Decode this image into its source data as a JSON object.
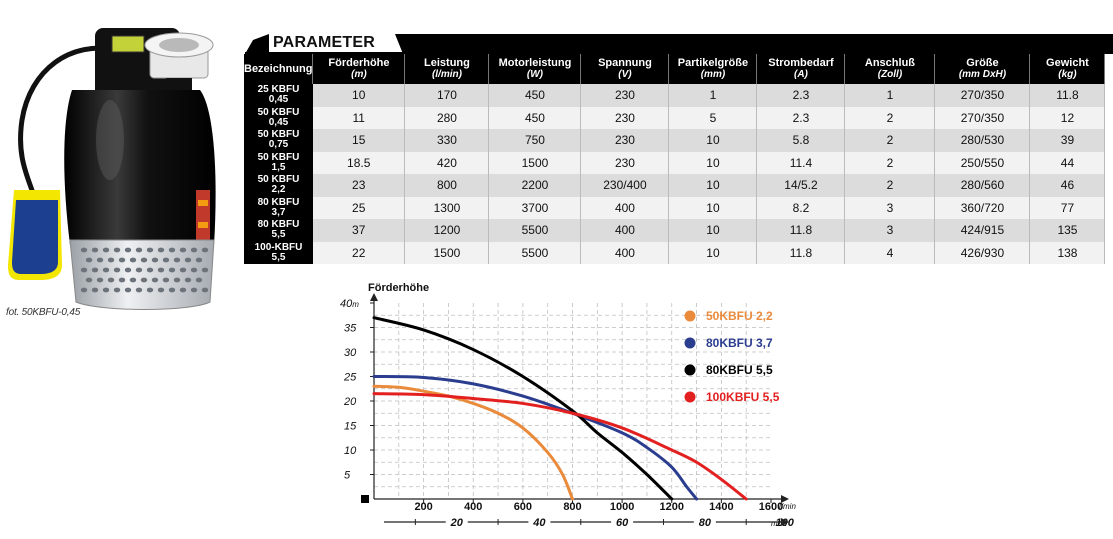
{
  "photo": {
    "caption": "fot. 50KBFU-0,45",
    "colors": {
      "body": "#0d0d0d",
      "float_switch": "#f3e600",
      "float_switch_cap": "#1d3f8f",
      "base": "#cfd2d6",
      "outlet": "#e8e8e8"
    }
  },
  "parameters": {
    "title": "PARAMETER",
    "header_labels": {
      "model": "Bezeichnung",
      "head": "Förderhöhe",
      "head_unit": "(m)",
      "flow": "Leistung",
      "flow_unit": "(l/min)",
      "power": "Motorleistung",
      "power_unit": "(W)",
      "voltage": "Spannung",
      "voltage_unit": "(V)",
      "particle": "Partikelgröße",
      "particle_unit": "(mm)",
      "current": "Strombedarf",
      "current_unit": "(A)",
      "connection": "Anschluß",
      "connection_unit": "(Zoll)",
      "size": "Größe",
      "size_unit": "(mm DxH)",
      "weight": "Gewicht",
      "weight_unit": "(kg)"
    },
    "rows": [
      {
        "model": "25 KBFU\n0,45",
        "head": "10",
        "flow": "170",
        "power": "450",
        "voltage": "230",
        "particle": "1",
        "current": "2.3",
        "connection": "1",
        "size": "270/350",
        "weight": "11.8"
      },
      {
        "model": "50 KBFU\n0,45",
        "head": "11",
        "flow": "280",
        "power": "450",
        "voltage": "230",
        "particle": "5",
        "current": "2.3",
        "connection": "2",
        "size": "270/350",
        "weight": "12"
      },
      {
        "model": "50 KBFU\n0,75",
        "head": "15",
        "flow": "330",
        "power": "750",
        "voltage": "230",
        "particle": "10",
        "current": "5.8",
        "connection": "2",
        "size": "280/530",
        "weight": "39"
      },
      {
        "model": "50 KBFU\n1,5",
        "head": "18.5",
        "flow": "420",
        "power": "1500",
        "voltage": "230",
        "particle": "10",
        "current": "11.4",
        "connection": "2",
        "size": "250/550",
        "weight": "44"
      },
      {
        "model": "50 KBFU\n2,2",
        "head": "23",
        "flow": "800",
        "power": "2200",
        "voltage": "230/400",
        "particle": "10",
        "current": "14/5.2",
        "connection": "2",
        "size": "280/560",
        "weight": "46"
      },
      {
        "model": "80 KBFU\n3,7",
        "head": "25",
        "flow": "1300",
        "power": "3700",
        "voltage": "400",
        "particle": "10",
        "current": "8.2",
        "connection": "3",
        "size": "360/720",
        "weight": "77"
      },
      {
        "model": "80 KBFU\n5,5",
        "head": "37",
        "flow": "1200",
        "power": "5500",
        "voltage": "400",
        "particle": "10",
        "current": "11.8",
        "connection": "3",
        "size": "424/915",
        "weight": "135"
      },
      {
        "model": "100-KBFU\n5,5",
        "head": "22",
        "flow": "1500",
        "power": "5500",
        "voltage": "400",
        "particle": "10",
        "current": "11.8",
        "connection": "4",
        "size": "426/930",
        "weight": "138"
      }
    ]
  },
  "chart_data": {
    "type": "line",
    "title": "",
    "ylabel": "Förderhöhe",
    "y_unit": "m",
    "x_unit": "l/min",
    "x2_unit": "m³/h",
    "xlim": [
      0,
      1600
    ],
    "ylim": [
      0,
      40
    ],
    "y_ticks": [
      5,
      10,
      15,
      20,
      25,
      30,
      35,
      40
    ],
    "x_ticks": [
      200,
      400,
      600,
      800,
      1000,
      1200,
      1400,
      1600
    ],
    "x2_ticks": [
      20,
      40,
      60,
      80,
      100
    ],
    "grid": true,
    "legend_position": "top-right",
    "series": [
      {
        "name": "50KBFU 2,2",
        "color": "#ea8a3b",
        "points": [
          [
            0,
            23
          ],
          [
            100,
            22.8
          ],
          [
            200,
            22
          ],
          [
            300,
            21
          ],
          [
            400,
            19.5
          ],
          [
            500,
            17.5
          ],
          [
            600,
            14.5
          ],
          [
            700,
            9.5
          ],
          [
            760,
            5
          ],
          [
            800,
            0
          ]
        ]
      },
      {
        "name": "80KBFU 3,7",
        "color": "#2a3d8f",
        "points": [
          [
            0,
            25
          ],
          [
            200,
            24.8
          ],
          [
            400,
            23.5
          ],
          [
            600,
            21
          ],
          [
            800,
            17.5
          ],
          [
            1000,
            13.5
          ],
          [
            1100,
            10.5
          ],
          [
            1200,
            6.5
          ],
          [
            1260,
            2.5
          ],
          [
            1300,
            0
          ]
        ]
      },
      {
        "name": "80KBFU 5,5",
        "color": "#000000",
        "points": [
          [
            0,
            37
          ],
          [
            200,
            34.5
          ],
          [
            400,
            30.5
          ],
          [
            600,
            25
          ],
          [
            800,
            18
          ],
          [
            900,
            13.5
          ],
          [
            1000,
            9.5
          ],
          [
            1100,
            5
          ],
          [
            1200,
            0
          ]
        ]
      },
      {
        "name": "100KBFU 5,5",
        "color": "#e32020",
        "points": [
          [
            0,
            21.5
          ],
          [
            200,
            21.3
          ],
          [
            400,
            20.5
          ],
          [
            600,
            19.5
          ],
          [
            800,
            17.5
          ],
          [
            1000,
            14.5
          ],
          [
            1200,
            10
          ],
          [
            1300,
            7.5
          ],
          [
            1400,
            4
          ],
          [
            1500,
            0
          ]
        ]
      }
    ]
  }
}
